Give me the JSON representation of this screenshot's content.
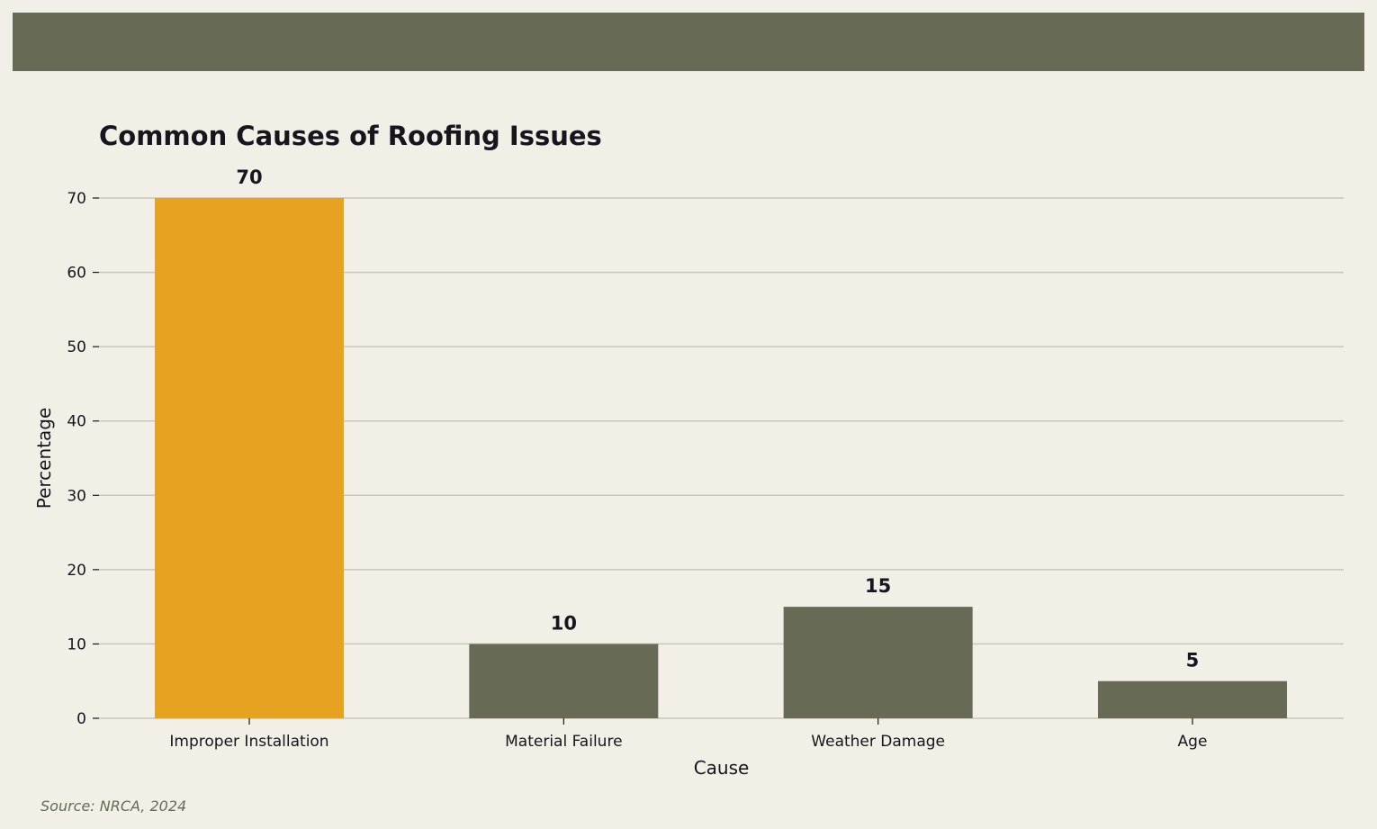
{
  "colors": {
    "background": "#f2efe6",
    "band": "#676b55",
    "highlight": "#e8a222",
    "bar": "#676b55",
    "text": "#1a141e",
    "grid": "#c9c7b8"
  },
  "source": "Source: NRCA, 2024",
  "chart_data": {
    "type": "bar",
    "title": "Common Causes of Roofing Issues",
    "xlabel": "Cause",
    "ylabel": "Percentage",
    "categories": [
      "Improper Installation",
      "Material Failure",
      "Weather Damage",
      "Age"
    ],
    "values": [
      70,
      10,
      15,
      5
    ],
    "data_labels": [
      "70",
      "10",
      "15",
      "5"
    ],
    "highlighted_category": "Improper Installation",
    "ylim": [
      0,
      70
    ],
    "yticks": [
      0,
      10,
      20,
      30,
      40,
      50,
      60,
      70
    ],
    "grid": "horizontal",
    "legend": "none"
  }
}
